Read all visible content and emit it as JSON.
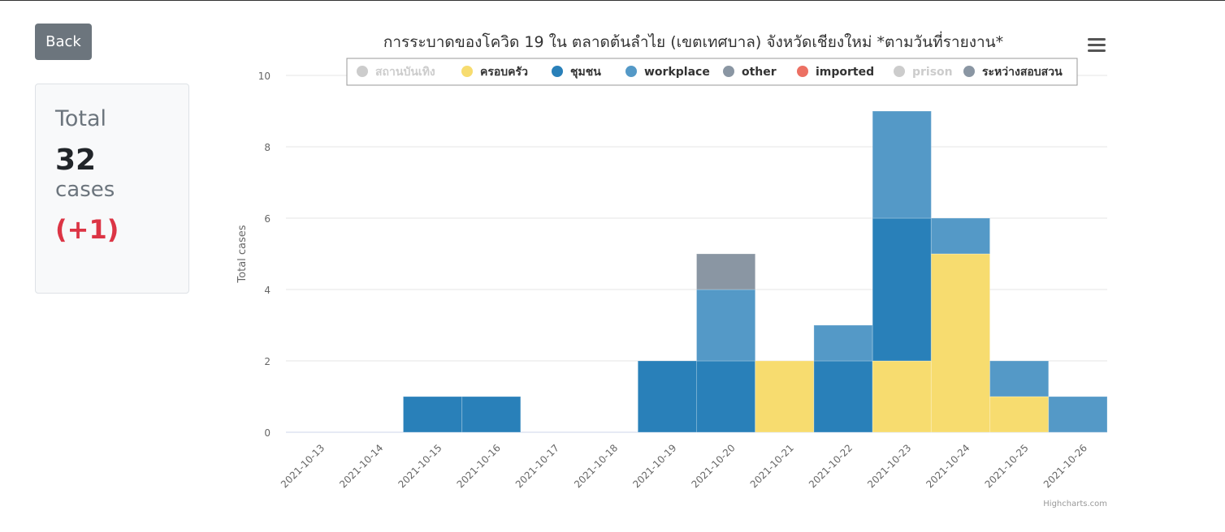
{
  "back_button": {
    "label": "Back"
  },
  "summary": {
    "title": "Total",
    "count": "32",
    "unit": "cases",
    "delta": "(+1)"
  },
  "chart_data": {
    "type": "bar",
    "stacked": true,
    "title": "การระบาดของโควิด 19 ใน ตลาดต้นลำไย (เขตเทศบาล) จังหวัดเชียงใหม่ *ตามวันที่รายงาน*",
    "xlabel": "",
    "ylabel": "Total cases",
    "ylim": [
      0,
      10
    ],
    "yticks": [
      0,
      2,
      4,
      6,
      8,
      10
    ],
    "grid": true,
    "legend_position": "top",
    "categories": [
      "2021-10-13",
      "2021-10-14",
      "2021-10-15",
      "2021-10-16",
      "2021-10-17",
      "2021-10-18",
      "2021-10-19",
      "2021-10-20",
      "2021-10-21",
      "2021-10-22",
      "2021-10-23",
      "2021-10-24",
      "2021-10-25",
      "2021-10-26"
    ],
    "series": [
      {
        "name": "สถานบันเทิง",
        "color": "#cccccc",
        "visible": false,
        "values": [
          0,
          0,
          0,
          0,
          0,
          0,
          0,
          0,
          0,
          0,
          0,
          0,
          0,
          0
        ]
      },
      {
        "name": "ครอบครัว",
        "color": "#f7dc6f",
        "visible": true,
        "values": [
          0,
          0,
          0,
          0,
          0,
          0,
          0,
          0,
          2,
          0,
          2,
          5,
          1,
          0
        ]
      },
      {
        "name": "ชุมชน",
        "color": "#2980b9",
        "visible": true,
        "values": [
          0,
          0,
          1,
          1,
          0,
          0,
          2,
          2,
          0,
          2,
          4,
          0,
          0,
          0
        ]
      },
      {
        "name": "workplace",
        "color": "#5499c7",
        "visible": true,
        "values": [
          0,
          0,
          0,
          0,
          0,
          0,
          0,
          2,
          0,
          1,
          3,
          1,
          1,
          1
        ]
      },
      {
        "name": "other",
        "color": "#8a96a3",
        "visible": true,
        "values": [
          0,
          0,
          0,
          0,
          0,
          0,
          0,
          1,
          0,
          0,
          0,
          0,
          0,
          0
        ]
      },
      {
        "name": "imported",
        "color": "#ec7063",
        "visible": true,
        "values": [
          0,
          0,
          0,
          0,
          0,
          0,
          0,
          0,
          0,
          0,
          0,
          0,
          0,
          0
        ]
      },
      {
        "name": "prison",
        "color": "#cccccc",
        "visible": false,
        "values": [
          0,
          0,
          0,
          0,
          0,
          0,
          0,
          0,
          0,
          0,
          0,
          0,
          0,
          0
        ]
      },
      {
        "name": "ระหว่างสอบสวน",
        "color": "#8a96a3",
        "visible": true,
        "values": [
          0,
          0,
          0,
          0,
          0,
          0,
          0,
          0,
          0,
          0,
          0,
          0,
          0,
          0
        ]
      }
    ],
    "credits": "Highcharts.com"
  }
}
